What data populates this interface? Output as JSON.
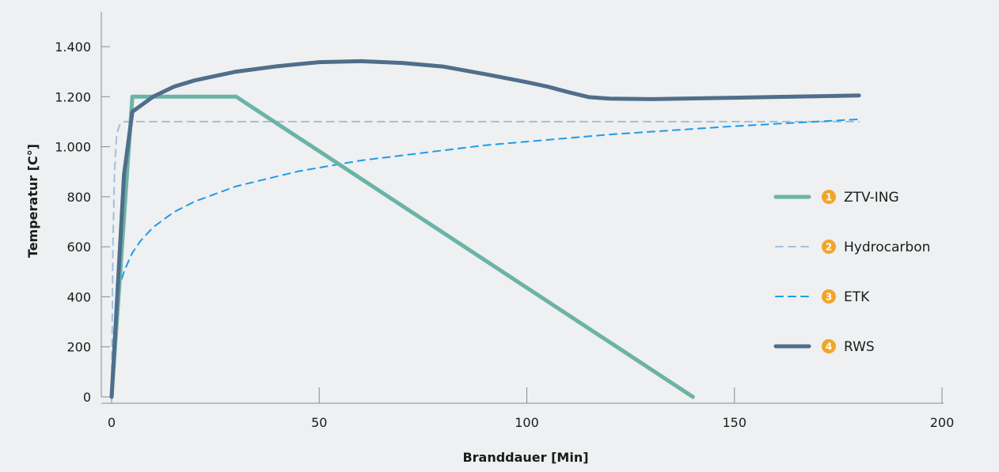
{
  "chart_data": {
    "type": "line",
    "xlabel": "Branddauer [Min]",
    "ylabel": "Temperatur [C°]",
    "xlim": [
      0,
      200
    ],
    "ylim": [
      0,
      1400
    ],
    "x_ticks": [
      {
        "value": 0,
        "label": "0"
      },
      {
        "value": 50,
        "label": "50"
      },
      {
        "value": 100,
        "label": "100"
      },
      {
        "value": 150,
        "label": "150"
      },
      {
        "value": 200,
        "label": "200"
      }
    ],
    "y_ticks": [
      {
        "value": 0,
        "label": "0"
      },
      {
        "value": 200,
        "label": "200"
      },
      {
        "value": 400,
        "label": "400"
      },
      {
        "value": 600,
        "label": "600"
      },
      {
        "value": 800,
        "label": "800"
      },
      {
        "value": 1000,
        "label": "1.000"
      },
      {
        "value": 1200,
        "label": "1.200"
      },
      {
        "value": 1400,
        "label": "1.400"
      }
    ],
    "grid": false,
    "legend_position": "right",
    "series": [
      {
        "badge": "1",
        "name": "ZTV-ING",
        "color": "#6bb3a7",
        "style": "solid",
        "points": [
          [
            0,
            0
          ],
          [
            5,
            1200
          ],
          [
            30,
            1200
          ],
          [
            140,
            0
          ]
        ]
      },
      {
        "badge": "2",
        "name": "Hydrocarbon",
        "color": "#a3bfdc",
        "style": "dashed",
        "points": [
          [
            0,
            0
          ],
          [
            0.3,
            600
          ],
          [
            0.7,
            900
          ],
          [
            1.2,
            1050
          ],
          [
            2,
            1090
          ],
          [
            3,
            1100
          ],
          [
            10,
            1100
          ],
          [
            180,
            1100
          ]
        ]
      },
      {
        "badge": "3",
        "name": "ETK",
        "color": "#1e9be9",
        "style": "dashed",
        "points": [
          [
            0,
            20
          ],
          [
            1,
            349
          ],
          [
            2,
            445
          ],
          [
            3,
            502
          ],
          [
            5,
            576
          ],
          [
            7,
            624
          ],
          [
            10,
            678
          ],
          [
            15,
            739
          ],
          [
            20,
            781
          ],
          [
            30,
            842
          ],
          [
            45,
            902
          ],
          [
            60,
            945
          ],
          [
            90,
            1006
          ],
          [
            120,
            1049
          ],
          [
            150,
            1082
          ],
          [
            180,
            1110
          ]
        ]
      },
      {
        "badge": "4",
        "name": "RWS",
        "color": "#4f6e8b",
        "style": "solid",
        "points": [
          [
            0,
            0
          ],
          [
            3,
            890
          ],
          [
            5,
            1140
          ],
          [
            10,
            1200
          ],
          [
            15,
            1240
          ],
          [
            20,
            1265
          ],
          [
            30,
            1300
          ],
          [
            40,
            1322
          ],
          [
            50,
            1338
          ],
          [
            60,
            1342
          ],
          [
            70,
            1335
          ],
          [
            80,
            1320
          ],
          [
            90,
            1290
          ],
          [
            100,
            1258
          ],
          [
            105,
            1240
          ],
          [
            110,
            1218
          ],
          [
            115,
            1198
          ],
          [
            120,
            1192
          ],
          [
            130,
            1190
          ],
          [
            140,
            1193
          ],
          [
            150,
            1196
          ],
          [
            160,
            1199
          ],
          [
            170,
            1202
          ],
          [
            180,
            1205
          ]
        ]
      }
    ]
  },
  "colors": {
    "background": "#eef0f1",
    "axis": "#8a8a8a",
    "badge": "#f2a52b"
  }
}
